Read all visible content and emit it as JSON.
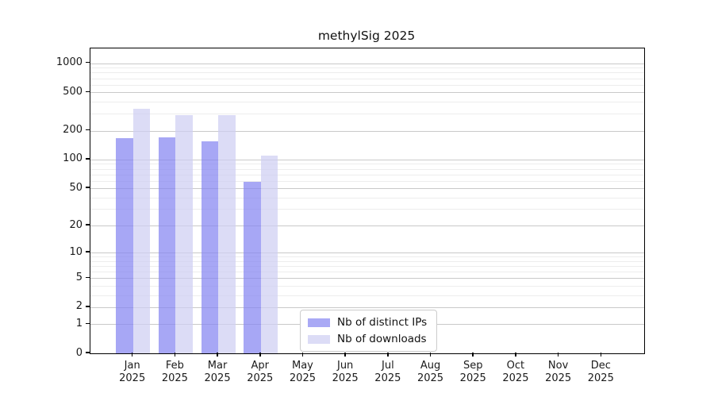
{
  "figure": {
    "title": "methylSig 2025"
  },
  "legend": {
    "items": [
      {
        "label": "Nb of distinct IPs",
        "swatch_color": "#a9a9f5"
      },
      {
        "label": "Nb of downloads",
        "swatch_color": "#dcdcf6"
      }
    ]
  },
  "y_axis": {
    "scale": "log10(value+1)",
    "major_ticks": [
      0,
      1,
      2,
      5,
      10,
      20,
      50,
      100,
      200,
      500,
      1000
    ],
    "minor_ticks": [
      3,
      4,
      6,
      7,
      8,
      9,
      30,
      40,
      60,
      70,
      80,
      90,
      300,
      400,
      600,
      700,
      800,
      900
    ]
  },
  "x_axis": {
    "year": "2025",
    "months": [
      "Jan",
      "Feb",
      "Mar",
      "Apr",
      "May",
      "Jun",
      "Jul",
      "Aug",
      "Sep",
      "Oct",
      "Nov",
      "Dec"
    ]
  },
  "chart_data": {
    "type": "bar",
    "title": "methylSig 2025",
    "categories": [
      "Jan 2025",
      "Feb 2025",
      "Mar 2025",
      "Apr 2025",
      "May 2025",
      "Jun 2025",
      "Jul 2025",
      "Aug 2025",
      "Sep 2025",
      "Oct 2025",
      "Nov 2025",
      "Dec 2025"
    ],
    "series": [
      {
        "name": "Nb of distinct IPs",
        "legend_color": "#a9a9f5",
        "bar_fill": "rgba(133,133,241,0.72)",
        "values": [
          166,
          169,
          156,
          58,
          null,
          null,
          null,
          null,
          null,
          null,
          null,
          null
        ]
      },
      {
        "name": "Nb of downloads",
        "legend_color": "#dcdcf6",
        "bar_fill": "rgba(206,206,243,0.72)",
        "values": [
          335,
          291,
          288,
          110,
          null,
          null,
          null,
          null,
          null,
          null,
          null,
          null
        ]
      }
    ],
    "y_scale": "log10(value+1)",
    "y_ticks": [
      0,
      1,
      2,
      5,
      10,
      20,
      50,
      100,
      200,
      500,
      1000
    ],
    "ylim": [
      0,
      1400
    ],
    "grid": "horizontal-major-and-minor",
    "legend_position": "lower-center-inside"
  },
  "colors": {
    "background": "#ffffff",
    "axis_spine": "#000000",
    "text": "#1a1a1a",
    "major_grid": "#c9c9c9",
    "minor_grid": "#ededed"
  }
}
